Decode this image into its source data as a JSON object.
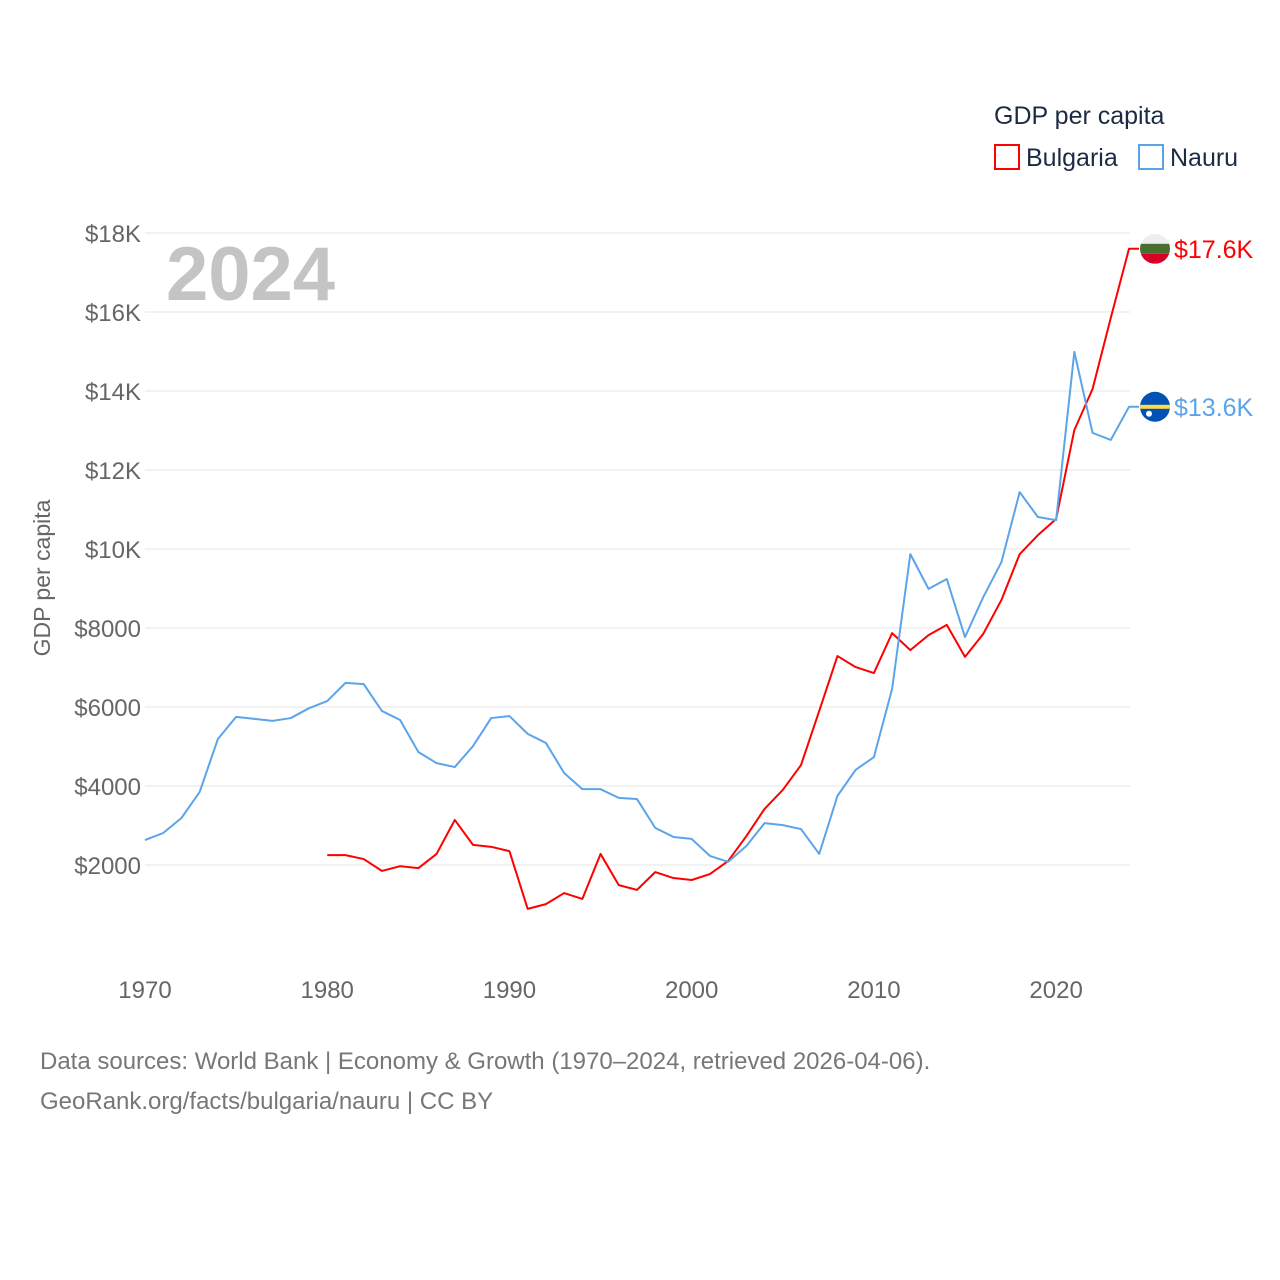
{
  "chart_data": {
    "type": "line",
    "title": "",
    "overlay_year": "2024",
    "legend_title": "GDP per capita",
    "legend_position": "top-right",
    "xlabel": "",
    "ylabel": "GDP per capita",
    "xlim": [
      1970,
      2024
    ],
    "ylim": [
      0,
      18000
    ],
    "grid": true,
    "x_ticks": [
      1970,
      1980,
      1990,
      2000,
      2010,
      2020
    ],
    "x_tick_labels": [
      "1970",
      "1980",
      "1990",
      "2000",
      "2010",
      "2020"
    ],
    "y_ticks": [
      2000,
      4000,
      6000,
      8000,
      10000,
      12000,
      14000,
      16000,
      18000
    ],
    "y_tick_labels": [
      "$2000",
      "$4000",
      "$6000",
      "$8000",
      "$10K",
      "$12K",
      "$14K",
      "$16K",
      "$18K"
    ],
    "series": [
      {
        "name": "Bulgaria",
        "color": "#ff0000",
        "end_label": "$17.6K",
        "flag": "bulgaria-flag",
        "x": [
          1980,
          1981,
          1982,
          1983,
          1984,
          1985,
          1986,
          1987,
          1988,
          1989,
          1990,
          1991,
          1992,
          1993,
          1994,
          1995,
          1996,
          1997,
          1998,
          1999,
          2000,
          2001,
          2002,
          2003,
          2004,
          2005,
          2006,
          2007,
          2008,
          2009,
          2010,
          2011,
          2012,
          2013,
          2014,
          2015,
          2016,
          2017,
          2018,
          2019,
          2020,
          2021,
          2022,
          2023,
          2024
        ],
        "values": [
          2250,
          2250,
          2150,
          1850,
          1970,
          1920,
          2280,
          3140,
          2510,
          2460,
          2350,
          890,
          1010,
          1290,
          1140,
          2280,
          1490,
          1370,
          1820,
          1670,
          1620,
          1770,
          2100,
          2730,
          3420,
          3900,
          4530,
          5900,
          7290,
          7010,
          6860,
          7870,
          7440,
          7820,
          8080,
          7270,
          7850,
          8710,
          9870,
          10350,
          10760,
          13010,
          14050,
          15850,
          17600
        ]
      },
      {
        "name": "Nauru",
        "color": "#5ca4ea",
        "end_label": "$13.6K",
        "flag": "nauru-flag",
        "x": [
          1970,
          1971,
          1972,
          1973,
          1974,
          1975,
          1976,
          1977,
          1978,
          1979,
          1980,
          1981,
          1982,
          1983,
          1984,
          1985,
          1986,
          1987,
          1988,
          1989,
          1990,
          1991,
          1992,
          1993,
          1994,
          1995,
          1996,
          1997,
          1998,
          1999,
          2000,
          2001,
          2002,
          2003,
          2004,
          2005,
          2006,
          2007,
          2008,
          2009,
          2010,
          2011,
          2012,
          2013,
          2014,
          2015,
          2016,
          2017,
          2018,
          2019,
          2020,
          2021,
          2022,
          2023,
          2024
        ],
        "values": [
          2630,
          2810,
          3190,
          3850,
          5190,
          5750,
          5700,
          5650,
          5720,
          5970,
          6150,
          6610,
          6580,
          5900,
          5670,
          4860,
          4580,
          4480,
          5010,
          5720,
          5770,
          5320,
          5090,
          4330,
          3920,
          3920,
          3700,
          3670,
          2940,
          2710,
          2660,
          2230,
          2080,
          2480,
          3060,
          3010,
          2910,
          2280,
          3750,
          4410,
          4730,
          6460,
          9870,
          8990,
          9240,
          7770,
          8780,
          9670,
          11440,
          10810,
          10730,
          14990,
          12940,
          12760,
          13600
        ]
      }
    ]
  },
  "footer": {
    "line1": "Data sources: World Bank | Economy & Growth (1970–2024, retrieved 2026-04-06).",
    "line2": "GeoRank.org/facts/bulgaria/nauru | CC BY"
  }
}
